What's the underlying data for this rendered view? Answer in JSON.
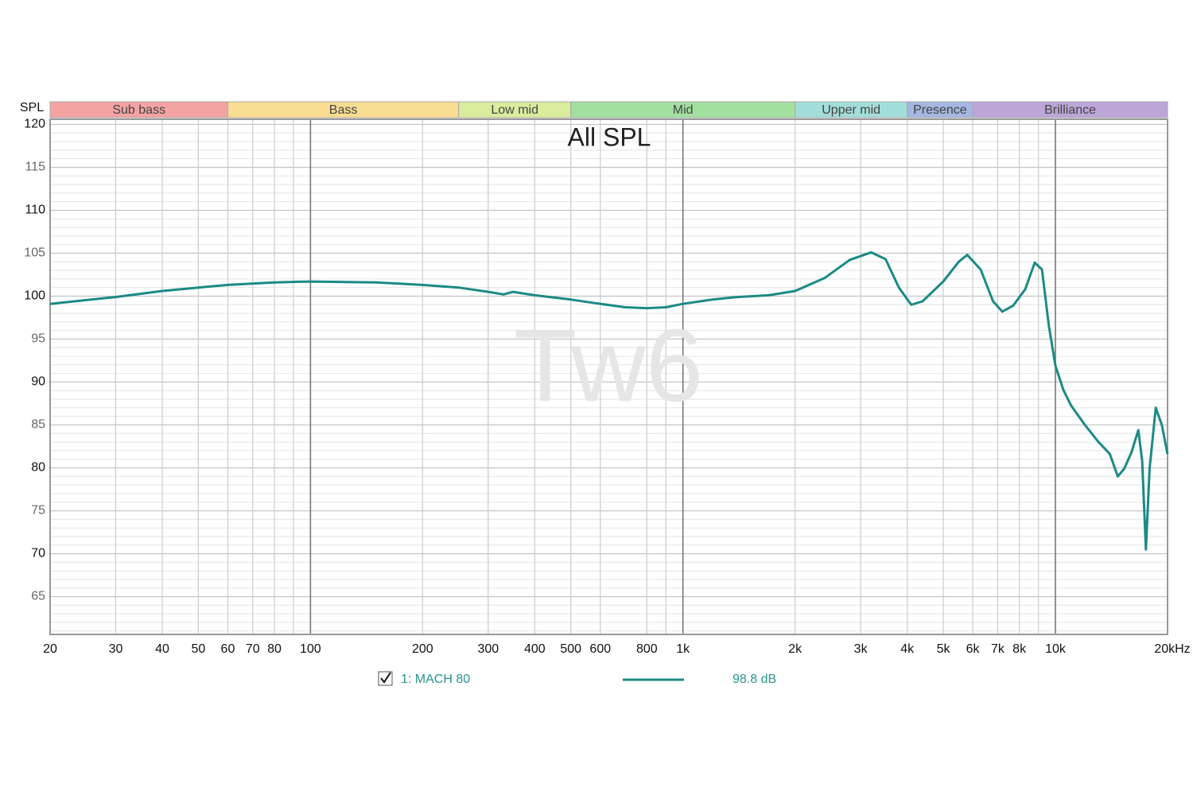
{
  "chart_data": {
    "type": "line",
    "title": "All SPL",
    "watermark": "Tw6",
    "y_label": "SPL",
    "log_x": true,
    "grid": true,
    "xlim": [
      20,
      20000
    ],
    "ylim": [
      60.6,
      120.6
    ],
    "yticks": [
      120,
      115,
      110,
      105,
      100,
      95,
      90,
      85,
      80,
      75,
      70,
      65
    ],
    "y_minor_step": 1,
    "xticks": [
      20,
      30,
      40,
      50,
      60,
      70,
      80,
      100,
      200,
      300,
      400,
      500,
      600,
      800,
      {
        "value": 1000,
        "label": "1k"
      },
      {
        "value": 2000,
        "label": "2k"
      },
      {
        "value": 3000,
        "label": "3k"
      },
      {
        "value": 4000,
        "label": "4k"
      },
      {
        "value": 5000,
        "label": "5k"
      },
      {
        "value": 6000,
        "label": "6k"
      },
      {
        "value": 7000,
        "label": "7k"
      },
      {
        "value": 8000,
        "label": "8k"
      },
      {
        "value": 10000,
        "label": "10k"
      },
      {
        "value": 20000,
        "label": "20kHz"
      }
    ],
    "x_minor_ticks": [
      90,
      900,
      9000
    ],
    "bands": [
      {
        "name": "Sub bass",
        "start": 20,
        "end": 60,
        "color": "#f4a3a3"
      },
      {
        "name": "Bass",
        "start": 60,
        "end": 250,
        "color": "#f9dd92"
      },
      {
        "name": "Low mid",
        "start": 250,
        "end": 500,
        "color": "#d9ed9d"
      },
      {
        "name": "Mid",
        "start": 500,
        "end": 2000,
        "color": "#a2e0a0"
      },
      {
        "name": "Upper mid",
        "start": 2000,
        "end": 4000,
        "color": "#a3ddd9"
      },
      {
        "name": "Presence",
        "start": 4000,
        "end": 6000,
        "color": "#a4b6e1"
      },
      {
        "name": "Brilliance",
        "start": 6000,
        "end": 20000,
        "color": "#bca6d8"
      }
    ],
    "series": [
      {
        "name": "1: MACH 80",
        "legend_value": "98.8 dB",
        "color": "#1b8a83",
        "x": [
          20,
          30,
          40,
          50,
          60,
          80,
          100,
          150,
          200,
          250,
          300,
          330,
          350,
          400,
          500,
          600,
          700,
          800,
          900,
          1000,
          1200,
          1400,
          1700,
          2000,
          2400,
          2800,
          3200,
          3500,
          3800,
          4100,
          4400,
          5000,
          5500,
          5800,
          6300,
          6800,
          7200,
          7700,
          8300,
          8800,
          9200,
          9600,
          10000,
          10500,
          11000,
          12000,
          13000,
          14000,
          14700,
          15300,
          16000,
          16700,
          17100,
          17500,
          17900,
          18600,
          19300,
          20000
        ],
        "values": [
          99.1,
          99.9,
          100.6,
          101.0,
          101.3,
          101.6,
          101.7,
          101.6,
          101.3,
          101.0,
          100.5,
          100.2,
          100.5,
          100.1,
          99.6,
          99.1,
          98.7,
          98.6,
          98.7,
          99.1,
          99.6,
          99.9,
          100.1,
          100.6,
          102.1,
          104.2,
          105.1,
          104.3,
          101.0,
          99.0,
          99.4,
          101.7,
          104.0,
          104.8,
          103.1,
          99.4,
          98.2,
          98.9,
          100.8,
          103.9,
          103.1,
          96.6,
          91.9,
          89.1,
          87.3,
          85.0,
          83.1,
          81.6,
          79.0,
          79.9,
          81.8,
          84.4,
          80.8,
          70.5,
          79.9,
          87.0,
          85.0,
          81.6
        ]
      }
    ]
  }
}
